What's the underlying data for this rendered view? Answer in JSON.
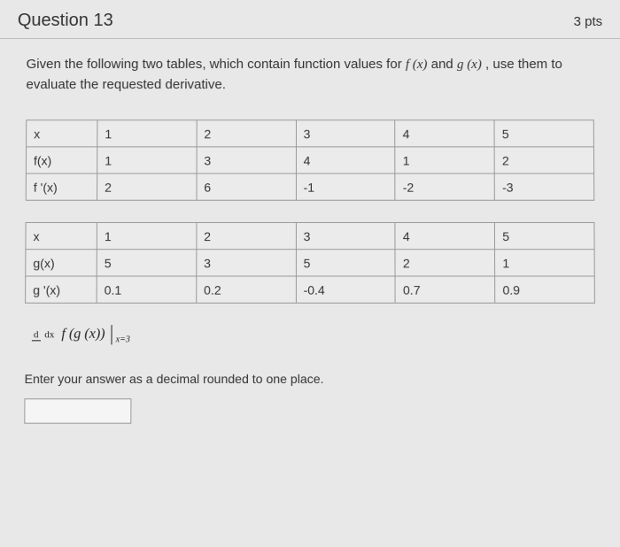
{
  "header": {
    "title": "Question 13",
    "points": "3 pts"
  },
  "prompt_parts": {
    "p1": "Given the following two tables, which contain function values for ",
    "f": "f (x)",
    "and": " and ",
    "g": "g (x)",
    "p2": " , use them to evaluate the requested derivative."
  },
  "table_f": {
    "rows": [
      [
        "x",
        "1",
        "2",
        "3",
        "4",
        "5"
      ],
      [
        "f(x)",
        "1",
        "3",
        "4",
        "1",
        "2"
      ],
      [
        "f '(x)",
        "2",
        "6",
        "-1",
        "-2",
        "-3"
      ]
    ]
  },
  "table_g": {
    "rows": [
      [
        "x",
        "1",
        "2",
        "3",
        "4",
        "5"
      ],
      [
        "g(x)",
        "5",
        "3",
        "5",
        "2",
        "1"
      ],
      [
        "g '(x)",
        "0.1",
        "0.2",
        "-0.4",
        "0.7",
        "0.9"
      ]
    ]
  },
  "formula": {
    "frac_num": "d",
    "frac_den": "dx",
    "func": "f (g (x))",
    "eval": "x=3"
  },
  "instruction": "Enter your answer as a decimal rounded to one place.",
  "answer_value": ""
}
